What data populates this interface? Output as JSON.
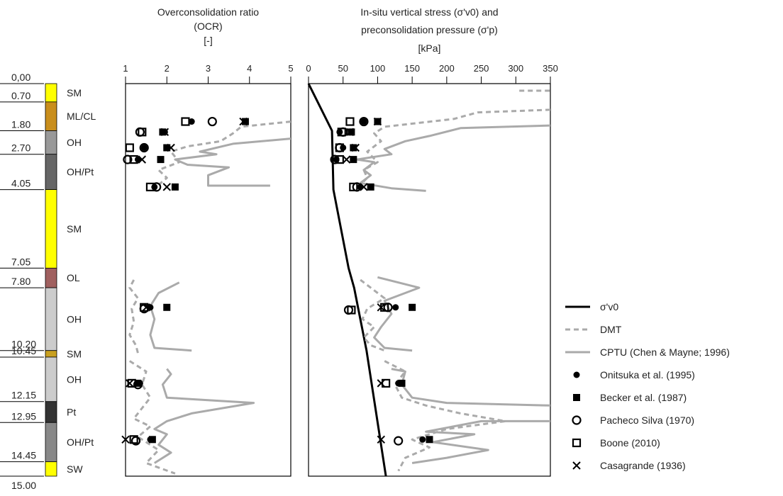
{
  "soil_profile": {
    "boundaries": [
      {
        "value": 0,
        "label": "0,00"
      },
      {
        "value": 0.7,
        "label": "0.70"
      },
      {
        "value": 1.8,
        "label": "1.80"
      },
      {
        "value": 2.7,
        "label": "2.70"
      },
      {
        "value": 4.05,
        "label": "4.05"
      },
      {
        "value": 7.05,
        "label": "7.05"
      },
      {
        "value": 7.8,
        "label": "7.80"
      },
      {
        "value": 10.2,
        "label": "10.20"
      },
      {
        "value": 10.45,
        "label": "10.45"
      },
      {
        "value": 12.15,
        "label": "12.15"
      },
      {
        "value": 12.95,
        "label": "12.95"
      },
      {
        "value": 14.45,
        "label": "14.45"
      },
      {
        "value": 15,
        "label": "15.00"
      }
    ],
    "layers": [
      {
        "name": "SM",
        "color": "#ffff00"
      },
      {
        "name": "ML/CL",
        "color": "#c98e1c"
      },
      {
        "name": "OH",
        "color": "#999999"
      },
      {
        "name": "OH/Pt",
        "color": "#666666"
      },
      {
        "name": "SM",
        "color": "#ffff00"
      },
      {
        "name": "OL",
        "color": "#a0605f"
      },
      {
        "name": "OH",
        "color": "#cccccc"
      },
      {
        "name": "SM",
        "color": "#c9a020"
      },
      {
        "name": "OH",
        "color": "#cccccc"
      },
      {
        "name": "Pt",
        "color": "#333333"
      },
      {
        "name": "OH/Pt",
        "color": "#888888"
      },
      {
        "name": "SW",
        "color": "#ffff00"
      }
    ]
  },
  "chart_data": [
    {
      "type": "line",
      "title": [
        "Overconsolidation ratio",
        "(OCR)",
        "[-]"
      ],
      "xlim": [
        1,
        5
      ],
      "xticks": [
        1,
        2,
        3,
        4,
        5
      ],
      "ylim": [
        0,
        15
      ],
      "series": [
        {
          "style": "dashed",
          "color": "#aaaaaa",
          "x": [
            5,
            4.4,
            3.8,
            3.6,
            3.3,
            2.5,
            2.1,
            2.3,
            1.8,
            2.0,
            1.7,
            null,
            1.2,
            1.1,
            1.3,
            1.15,
            1.2,
            1.1,
            1.25,
            1.3,
            null,
            1.1,
            1.5,
            1.4,
            1.6,
            1.4,
            1.2,
            1.6,
            1.3,
            1.8,
            1.5,
            2.2
          ],
          "y": [
            1.45,
            1.55,
            1.65,
            1.9,
            2.2,
            2.4,
            2.6,
            3.0,
            3.3,
            3.6,
            4.0,
            null,
            7.5,
            7.8,
            8.2,
            8.6,
            9.1,
            9.6,
            10.0,
            10.3,
            null,
            10.6,
            11.0,
            11.5,
            12.0,
            12.4,
            12.8,
            13.1,
            13.5,
            14.0,
            14.5,
            14.9
          ]
        },
        {
          "style": "solid",
          "color": "#aaaaaa",
          "x": [
            5,
            3.6,
            2.8,
            3.2,
            2.2,
            2.5,
            3.5,
            3.0,
            3.0,
            4.5,
            null,
            2.3,
            1.8,
            1.6,
            1.7,
            1.6,
            1.7,
            2.6,
            null,
            2.0,
            2.1,
            1.9,
            2.0,
            4.1,
            2.6,
            2.0,
            1.7,
            2.0,
            1.8,
            2.1,
            1.7
          ],
          "y": [
            2.1,
            2.3,
            2.6,
            2.7,
            2.9,
            3.1,
            3.2,
            3.5,
            3.9,
            3.9,
            null,
            7.6,
            8.0,
            8.5,
            9.0,
            9.6,
            10.1,
            10.2,
            null,
            10.9,
            11.1,
            11.5,
            12.0,
            12.2,
            12.6,
            12.9,
            13.2,
            13.4,
            13.8,
            14.1,
            14.5
          ]
        },
        {
          "marker": "dot",
          "color": "#000000",
          "x": [
            2.6,
            1.95,
            1.45,
            1.3,
            1.7,
            1.6,
            1.35,
            1.6
          ],
          "y": [
            1.45,
            1.85,
            2.45,
            2.9,
            3.95,
            8.55,
            11.45,
            13.6
          ]
        },
        {
          "marker": "square-filled",
          "color": "#000000",
          "x": [
            3.9,
            1.9,
            2.0,
            1.85,
            2.2,
            2.0,
            1.3,
            1.65
          ],
          "y": [
            1.45,
            1.85,
            2.45,
            2.9,
            3.95,
            8.55,
            11.45,
            13.6
          ]
        },
        {
          "marker": "circle-open",
          "color": "#000000",
          "x": [
            3.1,
            1.35,
            1.45,
            1.05,
            1.75,
            1.45,
            1.3,
            1.25
          ],
          "y": [
            1.45,
            1.85,
            2.45,
            2.9,
            3.95,
            8.6,
            11.5,
            13.65
          ]
        },
        {
          "marker": "square-open",
          "color": "#000000",
          "x": [
            2.45,
            1.4,
            1.1,
            1.2,
            1.6,
            1.45,
            1.15,
            1.2
          ],
          "y": [
            1.45,
            1.85,
            2.45,
            2.9,
            3.95,
            8.55,
            11.45,
            13.6
          ]
        },
        {
          "marker": "cross",
          "color": "#000000",
          "x": [
            3.85,
            1.95,
            2.1,
            1.4,
            2.0,
            1.5,
            1.1,
            1.0
          ],
          "y": [
            1.45,
            1.85,
            2.45,
            2.9,
            3.95,
            8.55,
            11.45,
            13.6
          ]
        }
      ]
    },
    {
      "type": "line",
      "title": [
        "In-situ vertical stress (σ'v0) and",
        "preconsolidation pressure (σ'p)",
        "[kPa]"
      ],
      "xlim": [
        0,
        350
      ],
      "xticks": [
        0,
        50,
        100,
        150,
        200,
        250,
        300,
        350
      ],
      "ylim": [
        0,
        15
      ],
      "series": [
        {
          "name": "σ'v0",
          "style": "thick",
          "color": "#000000",
          "x": [
            0,
            34,
            36,
            58,
            66,
            84,
            112
          ],
          "y": [
            0,
            1.8,
            4.05,
            7.05,
            7.8,
            10.2,
            15
          ]
        },
        {
          "name": "DMT",
          "style": "dashed",
          "color": "#aaaaaa",
          "x": [
            305,
            350,
            null,
            350,
            245,
            210,
            160,
            110,
            95,
            105,
            85,
            100,
            80,
            85,
            70,
            null,
            75,
            95,
            110,
            85,
            78,
            95,
            80,
            90,
            110,
            null,
            110,
            140,
            125,
            135,
            170,
            220,
            285,
            200,
            150,
            175,
            140,
            130
          ],
          "y": [
            0.27,
            0.27,
            null,
            1.0,
            1.1,
            1.35,
            1.5,
            1.65,
            1.9,
            2.2,
            2.6,
            3.0,
            3.3,
            3.6,
            4.0,
            null,
            7.5,
            7.9,
            8.2,
            8.6,
            9.0,
            9.3,
            9.7,
            10.0,
            10.2,
            null,
            10.6,
            11.0,
            11.5,
            12.0,
            12.3,
            12.6,
            12.9,
            13.2,
            13.6,
            13.9,
            14.3,
            14.8
          ]
        },
        {
          "name": "CPTU (Chen & Mayne; 1996)",
          "style": "solid",
          "color": "#aaaaaa",
          "x": [
            350,
            220,
            175,
            140,
            110,
            120,
            70,
            95,
            80,
            90,
            75,
            120,
            170,
            null,
            100,
            130,
            160,
            110,
            120,
            105,
            95,
            110,
            150,
            null,
            120,
            140,
            135,
            150,
            200,
            350,
            null,
            350,
            250,
            170,
            240,
            180,
            260,
            200,
            150
          ],
          "y": [
            1.6,
            1.7,
            2.0,
            2.2,
            2.5,
            2.7,
            2.9,
            3.0,
            3.3,
            3.5,
            3.8,
            4.0,
            4.1,
            null,
            7.4,
            7.6,
            7.8,
            8.3,
            8.8,
            9.3,
            9.7,
            10.1,
            10.2,
            null,
            10.9,
            11.0,
            11.5,
            12.0,
            12.2,
            12.3,
            null,
            12.9,
            12.9,
            13.3,
            13.4,
            13.7,
            14.0,
            14.3,
            14.5
          ]
        },
        {
          "name": "Onitsuka et al.  (1995)",
          "marker": "dot",
          "color": "#000000",
          "x": [
            80,
            45,
            50,
            40,
            75,
            126,
            130,
            165
          ],
          "y": [
            1.45,
            1.85,
            2.45,
            2.9,
            3.95,
            8.55,
            11.45,
            13.6
          ]
        },
        {
          "name": "Becker et al. (1987)",
          "marker": "square-filled",
          "color": "#000000",
          "x": [
            100,
            62,
            65,
            65,
            90,
            150,
            135,
            175
          ],
          "y": [
            1.45,
            1.85,
            2.45,
            2.9,
            3.95,
            8.55,
            11.45,
            13.6
          ]
        },
        {
          "name": "Pacheco Silva (1970)",
          "marker": "circle-open",
          "color": "#000000",
          "x": [
            80,
            50,
            45,
            38,
            70,
            58,
            115,
            130
          ],
          "y": [
            1.45,
            1.85,
            2.45,
            2.9,
            3.95,
            8.65,
            8.55,
            13.65
          ]
        },
        {
          "name": "Boone (2010)",
          "marker": "square-open",
          "color": "#000000",
          "x": [
            60,
            48,
            45,
            45,
            65,
            62,
            110,
            112
          ],
          "y": [
            1.45,
            1.85,
            2.45,
            2.9,
            3.95,
            8.65,
            8.55,
            11.45
          ]
        },
        {
          "name": "Casagrande (1936)",
          "marker": "cross",
          "color": "#000000",
          "x": [
            100,
            60,
            68,
            55,
            80,
            105,
            105,
            105
          ],
          "y": [
            1.45,
            1.85,
            2.45,
            2.9,
            3.95,
            8.55,
            11.45,
            13.6
          ]
        }
      ]
    }
  ]
}
